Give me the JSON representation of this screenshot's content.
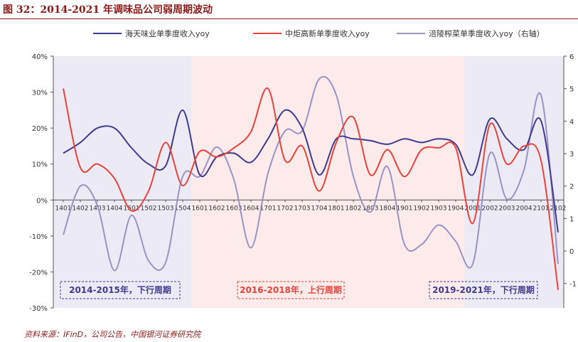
{
  "header": {
    "title": "图 32：2014-2021 年调味品公司弱周期波动"
  },
  "footer": {
    "source": "资料来源：IFinD，公司公告，中国银河证券研究院"
  },
  "colors": {
    "haitian": "#3F3A8C",
    "zhongju": "#E8423A",
    "fuling": "#9993C4",
    "band_down": "#ECEBF5",
    "band_up": "#FCEBEA",
    "title": "#8B1A1A"
  },
  "chart_data": {
    "type": "line",
    "title": "",
    "categories": [
      "1401",
      "1402",
      "1403",
      "1404",
      "1501",
      "1502",
      "1503",
      "1504",
      "1601",
      "1602",
      "1603",
      "1604",
      "1701",
      "1702",
      "1703",
      "1704",
      "1801",
      "1802",
      "1803",
      "1804",
      "1901",
      "1902",
      "1903",
      "1904",
      "2001",
      "2002",
      "2003",
      "2004",
      "2101",
      "2102"
    ],
    "left_axis": {
      "min": -30,
      "max": 40,
      "ticks": [
        "40%",
        "30%",
        "20%",
        "10%",
        "0%",
        "-10%",
        "-20%",
        "-30%"
      ]
    },
    "right_axis": {
      "min": -1.75,
      "max": 6,
      "ticks": [
        "6",
        "5",
        "4",
        "3",
        "2",
        "1",
        "0",
        "-1"
      ]
    },
    "series": [
      {
        "name": "海天味业单季度收入yoy",
        "axis": "left",
        "color": "#3F3A8C",
        "values": [
          13,
          16,
          20,
          20,
          14.5,
          10,
          9.5,
          25,
          7,
          12,
          13,
          10.5,
          17,
          25,
          20,
          7,
          17,
          17,
          16.5,
          15.5,
          17,
          16,
          17,
          15.5,
          7,
          22.5,
          17,
          14,
          22,
          -9
        ]
      },
      {
        "name": "中炬高新单季度收入yoy",
        "axis": "left",
        "color": "#E8423A",
        "values": [
          31,
          9,
          10,
          6,
          -3,
          2.5,
          16,
          4,
          13.5,
          12,
          14.5,
          19,
          31,
          11,
          15,
          2.5,
          16,
          23,
          7,
          14,
          6.5,
          14,
          14.5,
          14.5,
          -6.5,
          21,
          10,
          15,
          11,
          -25
        ]
      },
      {
        "name": "涪陵榨菜单季度收入yoy（右轴）",
        "axis": "right",
        "color": "#9993C4",
        "values": [
          0.5,
          2,
          1.4,
          -0.6,
          1.1,
          -0.3,
          -0.35,
          2.3,
          2.3,
          3.2,
          2.2,
          0.1,
          2.4,
          3.7,
          3.7,
          5.3,
          4.8,
          2.3,
          1.2,
          2.6,
          0.2,
          0.2,
          0.8,
          0.3,
          -0.4,
          3,
          1.6,
          2.5,
          4.8,
          -0.4
        ]
      }
    ],
    "bands": [
      {
        "label": "2014-2015年，下行周期",
        "from": "1401",
        "to": "1504",
        "kind": "down"
      },
      {
        "label": "2016-2018年，上行周期",
        "from": "1504",
        "to": "1904",
        "kind": "up"
      },
      {
        "label": "2019-2021年，下行周期",
        "from": "1904",
        "to": "2102",
        "kind": "down"
      }
    ],
    "legend_position": "top",
    "grid": false
  }
}
